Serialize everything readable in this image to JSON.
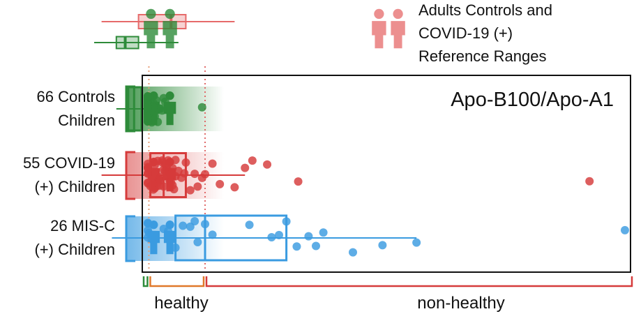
{
  "header": {
    "legend_lines": [
      "Adults Controls and",
      "COVID-19 (+)",
      "Reference Ranges"
    ]
  },
  "chart_data": {
    "type": "scatter",
    "title": "Apo-B100/Apo-A1",
    "xlabel": "",
    "ylabel": "",
    "colors": {
      "controls": "#2e8b3a",
      "covid": "#d63b3b",
      "misc": "#3a9be0",
      "adult_covid": "#e66a6a",
      "threshold_1": "#e8a07a",
      "threshold_2": "#e06a6a"
    },
    "thresholds": [
      0.62,
      1.0
    ],
    "range_bar_labels": [
      {
        "text": "healthy",
        "color": "#2e8b3a"
      },
      {
        "text": "",
        "color": "#e0782a"
      },
      {
        "text": "non-healthy",
        "color": "#d63b3b"
      }
    ],
    "reference_ranges": [
      {
        "name": "Adults COVID-19 (+)",
        "icon_name": "adults-covid-people-icon",
        "color": "#e66a6a",
        "whisker_low": 0.3,
        "q1": 0.55,
        "median": 0.77,
        "q3": 0.87,
        "whisker_high": 1.2
      },
      {
        "name": "Adults Controls",
        "icon_name": "adults-controls-people-icon",
        "color": "#2e8b3a",
        "whisker_low": 0.25,
        "q1": 0.4,
        "median": 0.46,
        "q3": 0.55,
        "whisker_high": 0.82
      }
    ],
    "series": [
      {
        "name": "66 Controls Children",
        "label_lines": [
          "66 Controls",
          "Children"
        ],
        "color": "#2e8b3a",
        "icon_name": "controls-children-icon",
        "box": {
          "whisker_low": 0.4,
          "q1": 0.48,
          "median": 0.52,
          "q3": 0.57,
          "whisker_high": 0.75
        },
        "points": [
          0.7,
          0.71,
          0.72,
          0.73,
          0.98,
          0.52,
          0.56,
          0.58,
          0.63,
          0.6,
          0.65,
          0.5,
          0.62,
          0.49,
          0.53,
          0.57,
          0.45,
          0.58,
          0.62,
          0.69,
          0.5,
          0.53,
          0.55,
          0.68,
          0.51,
          0.57,
          0.59,
          0.67,
          0.47,
          0.52,
          0.54,
          0.58,
          0.61,
          0.64,
          0.46,
          0.5,
          0.53,
          0.56,
          0.6,
          0.66,
          0.48,
          0.51,
          0.55,
          0.58,
          0.63,
          0.47,
          0.5,
          0.54,
          0.57,
          0.6,
          0.49,
          0.52,
          0.56,
          0.59,
          0.65,
          0.48,
          0.51,
          0.54,
          0.57,
          0.62,
          0.5,
          0.53,
          0.56,
          0.59,
          0.52,
          0.55
        ]
      },
      {
        "name": "55 COVID-19 (+) Children",
        "label_lines": [
          "55 COVID-19",
          "(+) Children"
        ],
        "color": "#d63b3b",
        "icon_name": "covid-children-icon",
        "box": {
          "whisker_low": 0.3,
          "q1": 0.63,
          "median": 0.72,
          "q3": 0.87,
          "whisker_high": 1.27
        },
        "points": [
          0.35,
          0.38,
          0.42,
          0.46,
          0.5,
          0.53,
          0.56,
          0.6,
          0.63,
          0.65,
          0.66,
          0.67,
          0.68,
          0.69,
          0.7,
          0.71,
          0.72,
          0.73,
          0.74,
          0.75,
          0.76,
          0.77,
          0.78,
          0.79,
          0.8,
          0.82,
          0.84,
          0.86,
          0.87,
          0.9,
          0.93,
          0.95,
          0.98,
          1.0,
          1.05,
          1.1,
          1.2,
          1.27,
          1.32,
          1.42,
          1.63,
          3.6,
          0.7,
          0.72,
          0.74,
          0.78,
          0.66,
          0.68,
          0.71,
          0.75,
          0.8,
          0.64,
          0.69,
          0.73,
          0.77
        ]
      },
      {
        "name": "26 MIS-C (+) Children",
        "label_lines": [
          "26 MIS-C",
          "(+) Children"
        ],
        "color": "#3a9be0",
        "icon_name": "misc-children-icon",
        "box": {
          "whisker_low": 0.37,
          "q1": 0.8,
          "median": 1.0,
          "q3": 1.55,
          "whisker_high": 2.43
        },
        "points": [
          0.4,
          0.45,
          0.52,
          0.6,
          0.62,
          0.72,
          0.75,
          0.8,
          0.85,
          0.9,
          0.93,
          0.95,
          1.0,
          1.05,
          1.3,
          1.45,
          1.5,
          1.55,
          1.62,
          1.7,
          1.75,
          1.8,
          2.0,
          2.2,
          2.43,
          3.9
        ]
      }
    ]
  }
}
